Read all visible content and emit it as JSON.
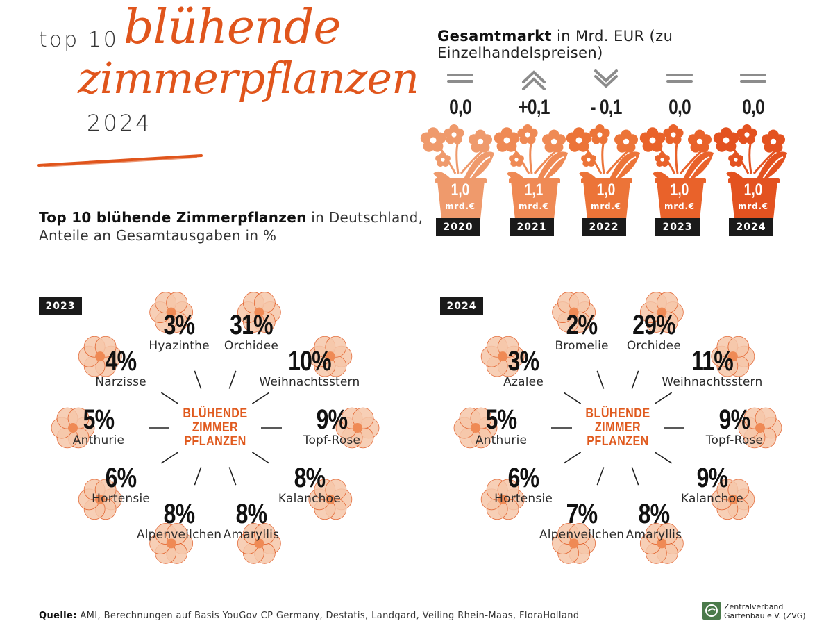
{
  "header": {
    "title_prefix": "top 10",
    "title_script_line1": "blühende",
    "title_script_line2": "zimmerpflanzen",
    "title_year": "2024",
    "subtitle_bold": "Top 10 blühende Zimmerpflanzen",
    "subtitle_rest": " in Deutschland,",
    "subtitle_line2": "Anteile an Gesamtausgaben in %"
  },
  "market": {
    "title_bold": "Gesamtmarkt",
    "title_rest": " in Mrd. EUR (zu Einzelhandelspreisen)",
    "unit": "mrd.€",
    "years": [
      {
        "year": "2020",
        "change": "0,0",
        "value": "1,0",
        "trend": "equal",
        "pot_color": "#ef9a6c"
      },
      {
        "year": "2021",
        "change": "+0,1",
        "value": "1,1",
        "trend": "up",
        "pot_color": "#ef8a55"
      },
      {
        "year": "2022",
        "change": "- 0,1",
        "value": "1,0",
        "trend": "down",
        "pot_color": "#ec7438"
      },
      {
        "year": "2023",
        "change": "0,0",
        "value": "1,0",
        "trend": "equal",
        "pot_color": "#e9622a"
      },
      {
        "year": "2024",
        "change": "0,0",
        "value": "1,0",
        "trend": "equal",
        "pot_color": "#e35220"
      }
    ]
  },
  "center_label": [
    "BLÜHENDE",
    "ZIMMER",
    "PFLANZEN"
  ],
  "chart_data": [
    {
      "type": "table",
      "title": "2023",
      "categories": [
        "Orchidee",
        "Weihnachtsstern",
        "Topf-Rose",
        "Kalanchoe",
        "Amaryllis",
        "Alpenveilchen",
        "Hortensie",
        "Anthurie",
        "Narzisse",
        "Hyazinthe"
      ],
      "values": [
        31,
        10,
        9,
        8,
        8,
        8,
        6,
        5,
        4,
        3
      ],
      "labels": [
        "31%",
        "10%",
        "9%",
        "8%",
        "8%",
        "8%",
        "6%",
        "5%",
        "4%",
        "3%"
      ]
    },
    {
      "type": "table",
      "title": "2024",
      "categories": [
        "Orchidee",
        "Weihnachtsstern",
        "Topf-Rose",
        "Kalanchoe",
        "Amaryllis",
        "Alpenveilchen",
        "Hortensie",
        "Anthurie",
        "Azalee",
        "Bromelie"
      ],
      "values": [
        29,
        11,
        9,
        9,
        8,
        7,
        6,
        5,
        3,
        2
      ],
      "labels": [
        "29%",
        "11%",
        "9%",
        "9%",
        "8%",
        "7%",
        "6%",
        "5%",
        "3%",
        "2%"
      ]
    }
  ],
  "footer": {
    "source_label": "Quelle:",
    "source_text": " AMI, Berechnungen auf Basis YouGov CP Germany, Destatis, Landgard, Veiling Rhein-Maas, FloraHolland",
    "logo_line1": "Zentralverband",
    "logo_line2": "Gartenbau e.V. (ZVG)"
  },
  "colors": {
    "accent": "#e0551c",
    "flower_light": "#f6c7aa",
    "text": "#1e1e1e"
  }
}
